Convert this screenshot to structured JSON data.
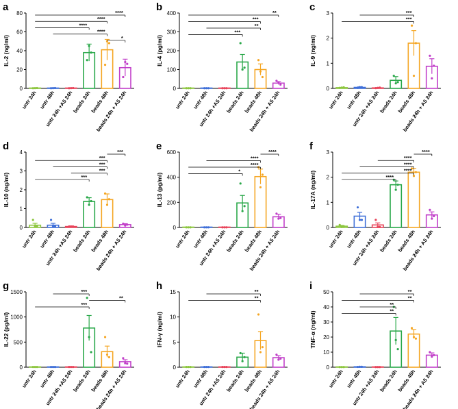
{
  "figure": {
    "colors": {
      "untr 24h": "#8dc63f",
      "untr 48h": "#3f6fd8",
      "untr 24h +A5 24h": "#e8445a",
      "beads 24h": "#2aa84a",
      "beads 48h": "#f5a623",
      "beads 24h + A5 24h": "#c13fc9"
    }
  },
  "chart_data": [
    {
      "type": "bar",
      "letter": "a",
      "title": "",
      "ylabel": "IL-2 (ng/ml)",
      "xlabel": "",
      "ylim": [
        0,
        80
      ],
      "yticks": [
        0,
        20,
        40,
        60,
        80
      ],
      "categories": [
        "untr 24h",
        "untr 48h",
        "untr 24h +A5 24h",
        "beads 24h",
        "beads 48h",
        "beads 24h + A5 24h"
      ],
      "values": [
        0.3,
        0.3,
        0.3,
        38,
        41,
        22
      ],
      "errors": [
        0.2,
        0.2,
        0.2,
        9,
        11,
        9
      ],
      "points": [
        [
          0.2,
          0.3,
          0.4
        ],
        [
          0.2,
          0.3,
          0.4
        ],
        [
          0.2,
          0.3,
          0.4
        ],
        [
          30,
          45,
          38
        ],
        [
          25,
          50,
          48
        ],
        [
          12,
          28,
          26
        ]
      ],
      "comparisons": [
        {
          "from": 0,
          "to": 5,
          "label": "****"
        },
        {
          "from": 0,
          "to": 4,
          "label": "****"
        },
        {
          "from": 0,
          "to": 3,
          "label": "****"
        },
        {
          "from": 1,
          "to": 4,
          "label": "****"
        },
        {
          "from": 4,
          "to": 5,
          "label": "*"
        }
      ]
    },
    {
      "type": "bar",
      "letter": "b",
      "title": "",
      "ylabel": "IL-4 (pg/ml)",
      "xlabel": "",
      "ylim": [
        0,
        400
      ],
      "yticks": [
        0,
        100,
        200,
        300,
        400
      ],
      "categories": [
        "untr 24h",
        "untr 48h",
        "untr 24h +A5 24h",
        "beads 24h",
        "beads 48h",
        "beads 24h + A5 24h"
      ],
      "values": [
        1,
        1,
        1,
        140,
        100,
        28
      ],
      "errors": [
        1,
        1,
        1,
        40,
        30,
        8
      ],
      "points": [
        [
          1,
          1,
          1
        ],
        [
          1,
          1,
          1
        ],
        [
          1,
          1,
          1
        ],
        [
          240,
          100,
          110
        ],
        [
          150,
          90,
          60
        ],
        [
          40,
          30,
          20
        ]
      ],
      "comparisons": [
        {
          "from": 0,
          "to": 5,
          "label": "**"
        },
        {
          "from": 0,
          "to": 4,
          "label": "***"
        },
        {
          "from": 1,
          "to": 4,
          "label": "**"
        },
        {
          "from": 0,
          "to": 3,
          "label": "***"
        }
      ]
    },
    {
      "type": "bar",
      "letter": "c",
      "title": "",
      "ylabel": "IL-9 (ng/ml)",
      "xlabel": "",
      "ylim": [
        0,
        3
      ],
      "yticks": [
        0,
        1,
        2,
        3
      ],
      "categories": [
        "untr 24h",
        "untr 48h",
        "untr 24h +A5 24h",
        "beads 24h",
        "beads 48h",
        "beads 24h + A5 24h"
      ],
      "values": [
        0.03,
        0.04,
        0.02,
        0.32,
        1.8,
        0.88
      ],
      "errors": [
        0.01,
        0.02,
        0.01,
        0.15,
        0.5,
        0.3
      ],
      "points": [
        [
          0.02,
          0.03,
          0.04
        ],
        [
          0.02,
          0.05,
          0.05
        ],
        [
          0.01,
          0.02,
          0.03
        ],
        [
          0.5,
          0.2,
          0.25
        ],
        [
          2.5,
          0.5,
          1.8
        ],
        [
          1.3,
          0.4,
          0.9
        ]
      ],
      "comparisons": [
        {
          "from": 1,
          "to": 4,
          "label": "***"
        },
        {
          "from": 0,
          "to": 4,
          "label": "***"
        }
      ]
    },
    {
      "type": "bar",
      "letter": "d",
      "title": "",
      "ylabel": "IL-10 (ng/ml)",
      "xlabel": "",
      "ylim": [
        0,
        4
      ],
      "yticks": [
        0,
        1,
        2,
        3,
        4
      ],
      "categories": [
        "untr 24h",
        "untr 48h",
        "untr 24h +A5 24h",
        "beads 24h",
        "beads 48h",
        "beads 24h + A5 24h"
      ],
      "values": [
        0.12,
        0.12,
        0.05,
        1.38,
        1.48,
        0.15
      ],
      "errors": [
        0.1,
        0.1,
        0.03,
        0.2,
        0.3,
        0.05
      ],
      "points": [
        [
          0.4,
          0.05,
          0.05
        ],
        [
          0.4,
          0.05,
          0.05
        ],
        [
          0.05,
          0.05,
          0.05
        ],
        [
          1.6,
          1.2,
          1.4
        ],
        [
          1.8,
          1.2,
          1.5
        ],
        [
          0.2,
          0.1,
          0.15
        ]
      ],
      "comparisons": [
        {
          "from": 4,
          "to": 5,
          "label": "***"
        },
        {
          "from": 0,
          "to": 4,
          "label": "***"
        },
        {
          "from": 1,
          "to": 4,
          "label": "***"
        },
        {
          "from": 2,
          "to": 4,
          "label": "***"
        },
        {
          "from": 0,
          "to": 3,
          "label": "***"
        }
      ]
    },
    {
      "type": "bar",
      "letter": "e",
      "title": "",
      "ylabel": "IL-13 (pg/ml)",
      "xlabel": "",
      "ylim": [
        0,
        600
      ],
      "yticks": [
        0,
        200,
        400,
        600
      ],
      "categories": [
        "untr 24h",
        "untr 48h",
        "untr 24h +A5 24h",
        "beads 24h",
        "beads 48h",
        "beads 24h + A5 24h"
      ],
      "values": [
        1,
        1,
        1,
        195,
        405,
        85
      ],
      "errors": [
        1,
        1,
        1,
        60,
        60,
        20
      ],
      "points": [
        [
          1,
          1,
          1
        ],
        [
          1,
          1,
          1
        ],
        [
          1,
          1,
          1
        ],
        [
          350,
          130,
          170
        ],
        [
          480,
          320,
          420
        ],
        [
          110,
          70,
          75
        ]
      ],
      "comparisons": [
        {
          "from": 4,
          "to": 5,
          "label": "****"
        },
        {
          "from": 1,
          "to": 4,
          "label": "****"
        },
        {
          "from": 0,
          "to": 4,
          "label": "****"
        },
        {
          "from": 0,
          "to": 3,
          "label": "*"
        }
      ]
    },
    {
      "type": "bar",
      "letter": "f",
      "title": "",
      "ylabel": "IL-17A (ng/ml)",
      "xlabel": "",
      "ylim": [
        0,
        3
      ],
      "yticks": [
        0,
        1,
        2,
        3
      ],
      "categories": [
        "untr 24h",
        "untr 48h",
        "untr 24h +A5 24h",
        "beads 24h",
        "beads 48h",
        "beads 24h + A5 24h"
      ],
      "values": [
        0.05,
        0.45,
        0.1,
        1.7,
        2.2,
        0.5
      ],
      "errors": [
        0.03,
        0.15,
        0.08,
        0.15,
        0.15,
        0.12
      ],
      "points": [
        [
          0.1,
          0.02,
          0.05
        ],
        [
          0.8,
          0.3,
          0.3
        ],
        [
          0.3,
          0.02,
          0.02
        ],
        [
          1.9,
          1.5,
          1.7
        ],
        [
          2.35,
          2.05,
          2.2
        ],
        [
          0.7,
          0.35,
          0.45
        ]
      ],
      "comparisons": [
        {
          "from": 4,
          "to": 5,
          "label": "****"
        },
        {
          "from": 2,
          "to": 4,
          "label": "****"
        },
        {
          "from": 1,
          "to": 4,
          "label": "****"
        },
        {
          "from": 0,
          "to": 4,
          "label": "****"
        },
        {
          "from": 0,
          "to": 3,
          "label": "****"
        }
      ]
    },
    {
      "type": "bar",
      "letter": "g",
      "title": "",
      "ylabel": "IL-22 (pg/ml)",
      "xlabel": "",
      "ylim": [
        0,
        1500
      ],
      "yticks": [
        0,
        500,
        1000,
        1500
      ],
      "categories": [
        "untr 24h",
        "untr 48h",
        "untr 24h +A5 24h",
        "beads 24h",
        "beads 48h",
        "beads 24h + A5 24h"
      ],
      "values": [
        5,
        5,
        5,
        780,
        310,
        110
      ],
      "errors": [
        3,
        3,
        3,
        250,
        110,
        40
      ],
      "points": [
        [
          5,
          5,
          5
        ],
        [
          5,
          5,
          5
        ],
        [
          5,
          5,
          5
        ],
        [
          1380,
          600,
          300
        ],
        [
          600,
          250,
          200
        ],
        [
          180,
          80,
          70
        ]
      ],
      "comparisons": [
        {
          "from": 1,
          "to": 3,
          "label": "***"
        },
        {
          "from": 3,
          "to": 5,
          "label": "**"
        },
        {
          "from": 0,
          "to": 3,
          "label": "***"
        }
      ]
    },
    {
      "type": "bar",
      "letter": "h",
      "title": "",
      "ylabel": "IFN-γ (ng/ml)",
      "xlabel": "",
      "ylim": [
        0,
        15
      ],
      "yticks": [
        0,
        5,
        10,
        15
      ],
      "categories": [
        "untr 24h",
        "untr 48h",
        "untr 24h +A5 24h",
        "beads 24h",
        "beads 48h",
        "beads 24h + A5 24h"
      ],
      "values": [
        0.05,
        0.05,
        0.05,
        2,
        5.3,
        1.9
      ],
      "errors": [
        0.03,
        0.03,
        0.03,
        0.8,
        1.8,
        0.4
      ],
      "points": [
        [
          0.05,
          0.05,
          0.05
        ],
        [
          0.05,
          0.05,
          0.05
        ],
        [
          0.05,
          0.05,
          0.05
        ],
        [
          2.8,
          1.2,
          2
        ],
        [
          10.5,
          3,
          4
        ],
        [
          2.5,
          1.5,
          1.7
        ]
      ],
      "comparisons": [
        {
          "from": 1,
          "to": 4,
          "label": "**"
        },
        {
          "from": 0,
          "to": 4,
          "label": "**"
        }
      ]
    },
    {
      "type": "bar",
      "letter": "i",
      "title": "",
      "ylabel": "TNF-α (ng/ml)",
      "xlabel": "",
      "ylim": [
        0,
        50
      ],
      "yticks": [
        0,
        10,
        20,
        30,
        40,
        50
      ],
      "categories": [
        "untr 24h",
        "untr 48h",
        "untr 24h +A5 24h",
        "beads 24h",
        "beads 48h",
        "beads 24h + A5 24h"
      ],
      "values": [
        0.1,
        0.3,
        0.1,
        24,
        22,
        8
      ],
      "errors": [
        0.1,
        0.1,
        0.1,
        9,
        3,
        1.5
      ],
      "points": [
        [
          0.1,
          0.1,
          0.1
        ],
        [
          0.2,
          0.3,
          0.3
        ],
        [
          0.1,
          0.1,
          0.1
        ],
        [
          40,
          18,
          12
        ],
        [
          26,
          20,
          19
        ],
        [
          10,
          7,
          8
        ]
      ],
      "comparisons": [
        {
          "from": 1,
          "to": 4,
          "label": "**"
        },
        {
          "from": 0,
          "to": 4,
          "label": "**"
        },
        {
          "from": 1,
          "to": 3,
          "label": "**"
        },
        {
          "from": 0,
          "to": 3,
          "label": "**"
        }
      ]
    }
  ]
}
